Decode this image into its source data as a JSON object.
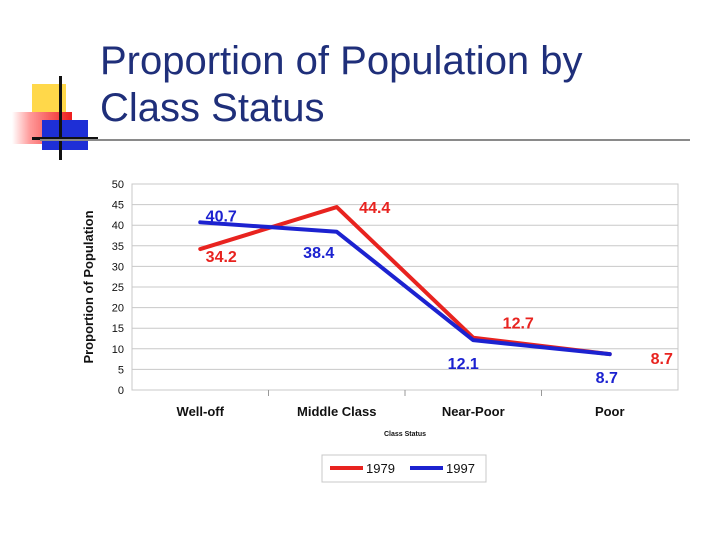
{
  "slide": {
    "title_line1": "Proportion of Population by",
    "title_line2": "Class Status"
  },
  "chart_data": {
    "type": "line",
    "title": "",
    "xlabel": "Class Status",
    "ylabel": "Proportion of Population",
    "categories": [
      "Well-off",
      "Middle Class",
      "Near-Poor",
      "Poor"
    ],
    "ylim": [
      0,
      50
    ],
    "yticks": [
      0,
      5,
      10,
      15,
      20,
      25,
      30,
      35,
      40,
      45,
      50
    ],
    "grid": true,
    "legend_position": "bottom",
    "series": [
      {
        "name": "1979",
        "color": "#e8231f",
        "values": [
          34.2,
          44.4,
          12.7,
          8.7
        ],
        "labels": [
          "34.2",
          "44.4",
          "12.7",
          "8.7"
        ]
      },
      {
        "name": "1997",
        "color": "#1c22d0",
        "values": [
          40.7,
          38.4,
          12.1,
          8.7
        ],
        "labels": [
          "40.7",
          "38.4",
          "12.1",
          "8.7"
        ]
      }
    ]
  }
}
